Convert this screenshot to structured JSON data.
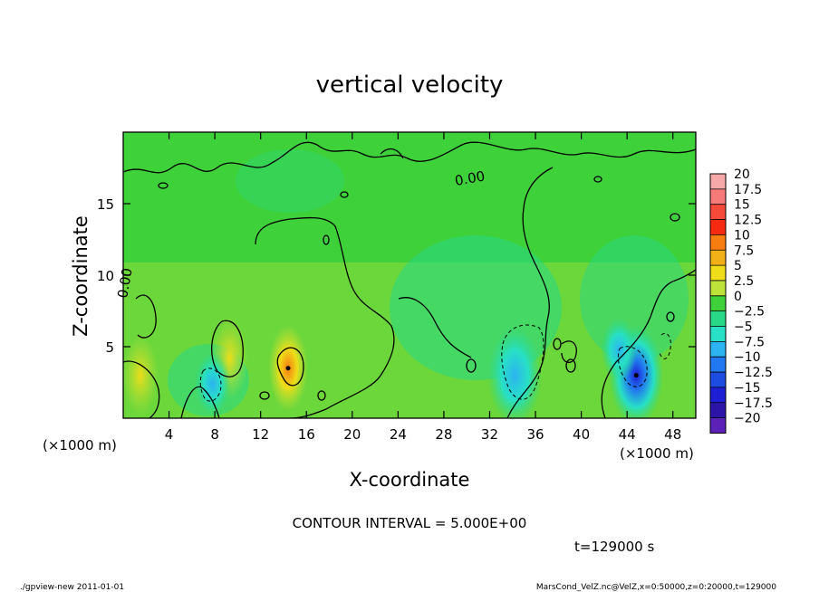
{
  "chart_data": {
    "type": "heatmap",
    "title": "vertical velocity",
    "xlabel": "X-coordinate",
    "ylabel": "Z-coordinate",
    "x_unit_left": "(×1000 m)",
    "x_unit_right": "(×1000 m)",
    "xlim": [
      0,
      50
    ],
    "ylim": [
      0,
      20
    ],
    "x_ticks": [
      4,
      8,
      12,
      16,
      20,
      24,
      28,
      32,
      36,
      40,
      44,
      48
    ],
    "y_ticks": [
      5,
      10,
      15
    ],
    "contour_interval_text": "CONTOUR INTERVAL = 5.000E+00",
    "contour_label": "0.00",
    "time_text": "t=129000 s",
    "colorbar": {
      "labels": [
        "20",
        "17.5",
        "15",
        "12.5",
        "10",
        "7.5",
        "5",
        "2.5",
        "0",
        "−2.5",
        "−5",
        "−7.5",
        "−10",
        "−12.5",
        "−15",
        "−17.5",
        "−20"
      ],
      "colors": [
        "#f7a8a8",
        "#f77a7a",
        "#f54a3a",
        "#f52a10",
        "#f77d10",
        "#f2b018",
        "#eedd18",
        "#bde23a",
        "#3ed13a",
        "#28d886",
        "#28e0c6",
        "#2bb4ef",
        "#2178f0",
        "#1c4de0",
        "#1e1ed4",
        "#2c14a8",
        "#5c22b8"
      ]
    },
    "features": [
      {
        "type": "updraft",
        "x": 14.4,
        "z": 3.5,
        "peak": 10
      },
      {
        "type": "updraft",
        "x": 9.3,
        "z": 4.2,
        "peak": 7.5
      },
      {
        "type": "updraft",
        "x": 1.5,
        "z": 3.0,
        "peak": 5
      },
      {
        "type": "downdraft",
        "x": 34.2,
        "z": 3.0,
        "peak": -7.5
      },
      {
        "type": "downdraft",
        "x": 7.8,
        "z": 2.4,
        "peak": -5
      },
      {
        "type": "downdraft",
        "x": 44.8,
        "z": 3.0,
        "peak": -12.5
      },
      {
        "type": "downdraft",
        "x": 43.3,
        "z": 4.8,
        "peak": -5
      }
    ]
  },
  "footer": {
    "left": "./gpview-new   2011-01-01",
    "right": "MarsCond_VelZ.nc@VelZ,x=0:50000,z=0:20000,t=129000"
  }
}
